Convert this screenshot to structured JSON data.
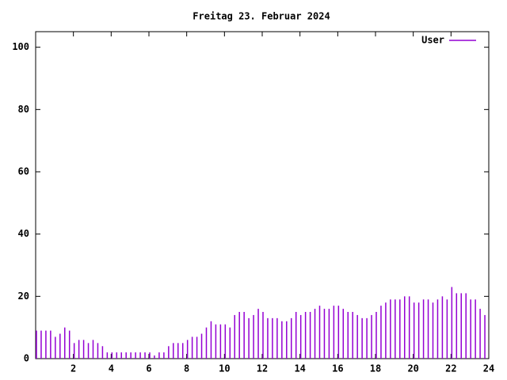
{
  "chart_data": {
    "type": "impulses",
    "title": "Freitag 23. Februar 2024",
    "x": [
      0,
      0.25,
      0.5,
      0.75,
      1,
      1.25,
      1.5,
      1.75,
      2,
      2.25,
      2.5,
      2.75,
      3,
      3.25,
      3.5,
      3.75,
      4,
      4.25,
      4.5,
      4.75,
      5,
      5.25,
      5.5,
      5.75,
      6,
      6.25,
      6.5,
      6.75,
      7,
      7.25,
      7.5,
      7.75,
      8,
      8.25,
      8.5,
      8.75,
      9,
      9.25,
      9.5,
      9.75,
      10,
      10.25,
      10.5,
      10.75,
      11,
      11.25,
      11.5,
      11.75,
      12,
      12.25,
      12.5,
      12.75,
      13,
      13.25,
      13.5,
      13.75,
      14,
      14.25,
      14.5,
      14.75,
      15,
      15.25,
      15.5,
      15.75,
      16,
      16.25,
      16.5,
      16.75,
      17,
      17.25,
      17.5,
      17.75,
      18,
      18.25,
      18.5,
      18.75,
      19,
      19.25,
      19.5,
      19.75,
      20,
      20.25,
      20.5,
      20.75,
      21,
      21.25,
      21.5,
      21.75,
      22,
      22.25,
      22.5,
      22.75,
      23,
      23.25,
      23.5,
      23.75
    ],
    "series": [
      {
        "name": "User",
        "color": "#9400d3",
        "values": [
          9,
          9,
          9,
          9,
          7,
          8,
          10,
          9,
          5,
          6,
          6,
          5,
          6,
          5,
          4,
          2,
          2,
          2,
          2,
          2,
          2,
          2,
          2,
          2,
          2,
          1,
          2,
          2,
          4,
          5,
          5,
          5,
          6,
          7,
          7,
          8,
          10,
          12,
          11,
          11,
          11,
          10,
          14,
          15,
          15,
          13,
          14,
          16,
          15,
          13,
          13,
          13,
          12,
          12,
          13,
          15,
          14,
          15,
          15,
          16,
          17,
          16,
          16,
          17,
          17,
          16,
          15,
          15,
          14,
          13,
          13,
          14,
          15,
          17,
          18,
          19,
          19,
          19,
          20,
          20,
          18,
          18,
          19,
          19,
          18,
          19,
          20,
          19,
          23,
          21,
          21,
          21,
          19,
          19,
          16,
          14
        ]
      }
    ],
    "xlim": [
      0,
      24
    ],
    "xticks": [
      2,
      4,
      6,
      8,
      10,
      12,
      14,
      16,
      18,
      20,
      22,
      24
    ],
    "ylim": [
      0,
      105
    ],
    "yticks": [
      0,
      20,
      40,
      60,
      80,
      100
    ],
    "legend": "top-right"
  }
}
